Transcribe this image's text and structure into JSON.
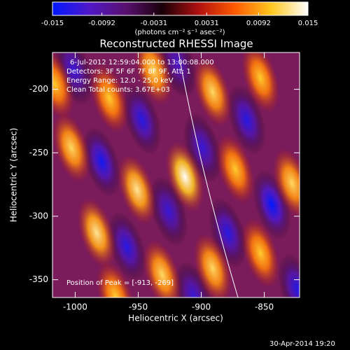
{
  "chart_data": {
    "type": "image",
    "title": "Reconstructed RHESSI Image",
    "xlabel": "Heliocentric X (arcsec)",
    "ylabel": "Heliocentric Y (arcsec)",
    "xlim": [
      -1018,
      -822
    ],
    "ylim": [
      -364,
      -171
    ],
    "xticks": [
      -1000,
      -950,
      -900,
      -850
    ],
    "yticks": [
      -200,
      -250,
      -300,
      -350
    ],
    "colorbar": {
      "clim": [
        -0.015,
        0.015
      ],
      "ticks": [
        -0.015,
        -0.0092,
        -0.0031,
        0.0031,
        0.0092,
        0.015
      ],
      "label": "(photons cm⁻² s⁻¹ asec⁻²)",
      "colormap": [
        "#0018ff",
        "#5018c8",
        "#5a1070",
        "#180008",
        "#b01010",
        "#ff5a00",
        "#ffc820",
        "#ffffff"
      ]
    },
    "annotations": [
      "6-Jul-2012 12:59:04.000 to 13:00:08.000",
      "Detectors: 3F 5F 6F 7F 8F 9F, Att: 1",
      "Energy Range: 12.0 - 25.0 keV",
      "Clean     Total counts: 3.67E+03"
    ],
    "peak_label": "Position of Peak = [-913, -269]",
    "footer": "30-Apr-2014 19:20",
    "sources": [
      {
        "x": -1016,
        "y": -196,
        "value": 0.011
      },
      {
        "x": -1003,
        "y": -246,
        "value": 0.012
      },
      {
        "x": -983,
        "y": -313,
        "value": 0.013
      },
      {
        "x": -968,
        "y": -363,
        "value": 0.011
      },
      {
        "x": -973,
        "y": -207,
        "value": 0.011
      },
      {
        "x": -951,
        "y": -279,
        "value": 0.013
      },
      {
        "x": -931,
        "y": -346,
        "value": 0.012
      },
      {
        "x": -938,
        "y": -185,
        "value": 0.012
      },
      {
        "x": -913,
        "y": -269,
        "value": 0.015
      },
      {
        "x": -891,
        "y": -341,
        "value": 0.012
      },
      {
        "x": -891,
        "y": -202,
        "value": 0.012
      },
      {
        "x": -873,
        "y": -263,
        "value": 0.011
      },
      {
        "x": -853,
        "y": -329,
        "value": 0.011
      },
      {
        "x": -853,
        "y": -191,
        "value": 0.011
      },
      {
        "x": -828,
        "y": -274,
        "value": 0.012
      },
      {
        "x": -1001,
        "y": -185,
        "value": -0.012
      },
      {
        "x": -979,
        "y": -257,
        "value": -0.014
      },
      {
        "x": -959,
        "y": -324,
        "value": -0.013
      },
      {
        "x": -947,
        "y": -224,
        "value": -0.013
      },
      {
        "x": -926,
        "y": -296,
        "value": -0.012
      },
      {
        "x": -906,
        "y": -363,
        "value": -0.012
      },
      {
        "x": -919,
        "y": -179,
        "value": -0.011
      },
      {
        "x": -899,
        "y": -246,
        "value": -0.012
      },
      {
        "x": -879,
        "y": -313,
        "value": -0.013
      },
      {
        "x": -864,
        "y": -224,
        "value": -0.013
      },
      {
        "x": -844,
        "y": -291,
        "value": -0.015
      },
      {
        "x": -824,
        "y": -357,
        "value": -0.013
      }
    ]
  }
}
